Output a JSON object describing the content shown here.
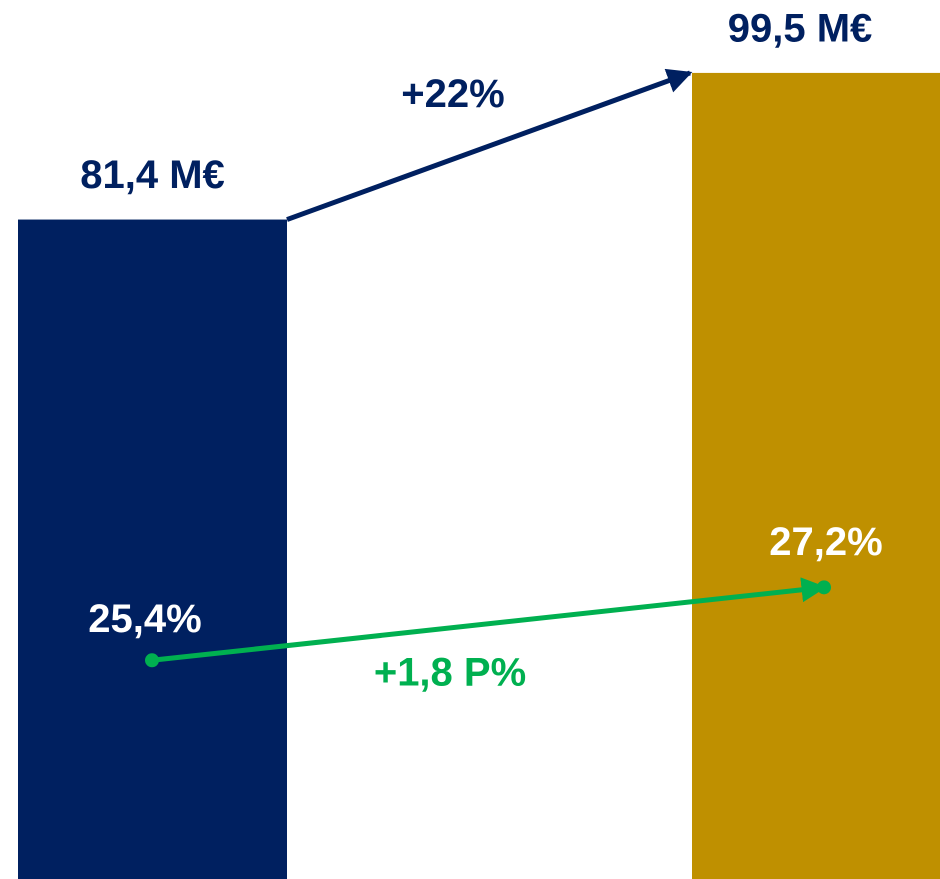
{
  "chart_data": {
    "type": "bar",
    "categories": [
      null,
      null
    ],
    "values": [
      81.4,
      99.5
    ],
    "value_labels": [
      "81,4 M€",
      "99,5 M€"
    ],
    "colors": [
      "#002060",
      "#bf9000"
    ],
    "ylim": [
      0,
      108.5
    ],
    "line": {
      "values": [
        25.4,
        27.2
      ],
      "value_labels": [
        "25,4%",
        "27,2%"
      ],
      "color": "#00b050",
      "axis": "y2"
    },
    "y2lim": [
      20,
      41.7
    ],
    "annotations": [
      "+22%",
      "+1,8 P%"
    ]
  }
}
